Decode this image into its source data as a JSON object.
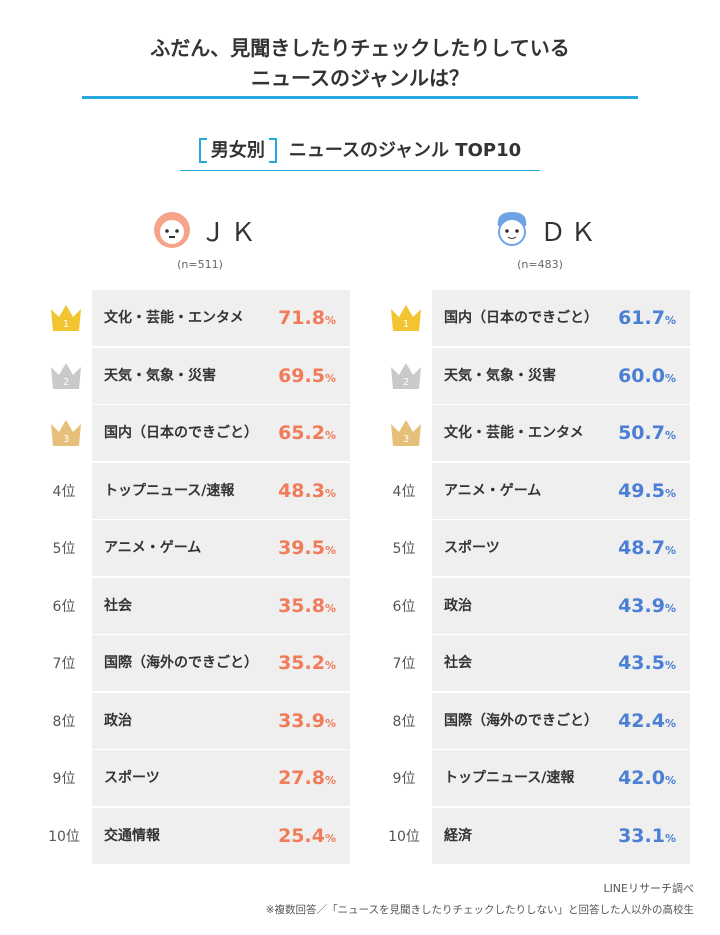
{
  "header": {
    "title_line1": "ふだん、見聞きしたりチェックしたりしている",
    "title_line2": "ニュースのジャンルは？",
    "subtitle_tag": "男女別",
    "subtitle": "ニュースのジャンル TOP10"
  },
  "unit": "%",
  "columns": [
    {
      "label": "ＪＫ",
      "n": "(n=511)",
      "rows": [
        {
          "rank": "1",
          "genre": "文化・芸能・エンタメ",
          "value": "71.8"
        },
        {
          "rank": "2",
          "genre": "天気・気象・災害",
          "value": "69.5"
        },
        {
          "rank": "3",
          "genre": "国内（日本のできごと）",
          "value": "65.2"
        },
        {
          "rank": "4位",
          "genre": "トップニュース/速報",
          "value": "48.3"
        },
        {
          "rank": "5位",
          "genre": "アニメ・ゲーム",
          "value": "39.5"
        },
        {
          "rank": "6位",
          "genre": "社会",
          "value": "35.8"
        },
        {
          "rank": "7位",
          "genre": "国際（海外のできごと）",
          "value": "35.2"
        },
        {
          "rank": "8位",
          "genre": "政治",
          "value": "33.9"
        },
        {
          "rank": "9位",
          "genre": "スポーツ",
          "value": "27.8"
        },
        {
          "rank": "10位",
          "genre": "交通情報",
          "value": "25.4"
        }
      ]
    },
    {
      "label": "ＤＫ",
      "n": "(n=483)",
      "rows": [
        {
          "rank": "1",
          "genre": "国内（日本のできごと）",
          "value": "61.7"
        },
        {
          "rank": "2",
          "genre": "天気・気象・災害",
          "value": "60.0"
        },
        {
          "rank": "3",
          "genre": "文化・芸能・エンタメ",
          "value": "50.7"
        },
        {
          "rank": "4位",
          "genre": "アニメ・ゲーム",
          "value": "49.5"
        },
        {
          "rank": "5位",
          "genre": "スポーツ",
          "value": "48.7"
        },
        {
          "rank": "6位",
          "genre": "政治",
          "value": "43.9"
        },
        {
          "rank": "7位",
          "genre": "社会",
          "value": "43.5"
        },
        {
          "rank": "8位",
          "genre": "国際（海外のできごと）",
          "value": "42.4"
        },
        {
          "rank": "9位",
          "genre": "トップニュース/速報",
          "value": "42.0"
        },
        {
          "rank": "10位",
          "genre": "経済",
          "value": "33.1"
        }
      ]
    }
  ],
  "footer": {
    "source": "LINEリサーチ調べ",
    "note": "※複数回答／「ニュースを見聞きしたりチェックしたりしない」と回答した人以外の高校生"
  }
}
